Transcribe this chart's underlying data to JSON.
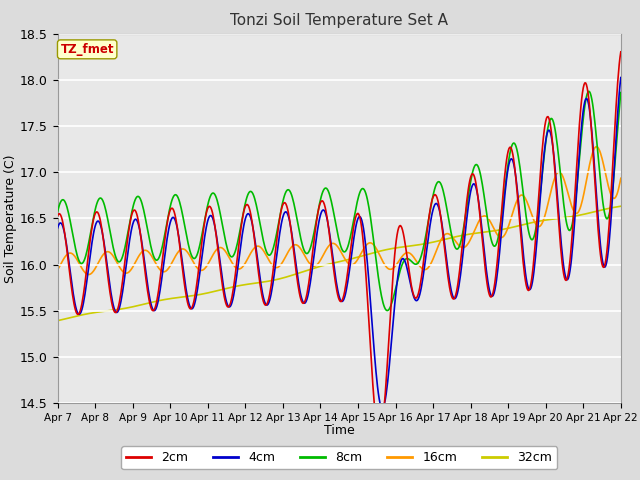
{
  "title": "Tonzi Soil Temperature Set A",
  "xlabel": "Time",
  "ylabel": "Soil Temperature (C)",
  "ylim": [
    14.5,
    18.5
  ],
  "legend_label": "TZ_fmet",
  "series_labels": [
    "2cm",
    "4cm",
    "8cm",
    "16cm",
    "32cm"
  ],
  "series_colors": [
    "#dd0000",
    "#0000cc",
    "#00bb00",
    "#ff9900",
    "#cccc00"
  ],
  "xtick_labels": [
    "Apr 7",
    "Apr 8",
    "Apr 9",
    "Apr 10",
    "Apr 11",
    "Apr 12",
    "Apr 13",
    "Apr 14",
    "Apr 15",
    "Apr 16",
    "Apr 17",
    "Apr 18",
    "Apr 19",
    "Apr 20",
    "Apr 21",
    "Apr 22"
  ],
  "plot_bg_color": "#e8e8e8",
  "linewidth": 1.2,
  "yticks": [
    14.5,
    15.0,
    15.5,
    16.0,
    16.5,
    17.0,
    17.5,
    18.0,
    18.5
  ]
}
